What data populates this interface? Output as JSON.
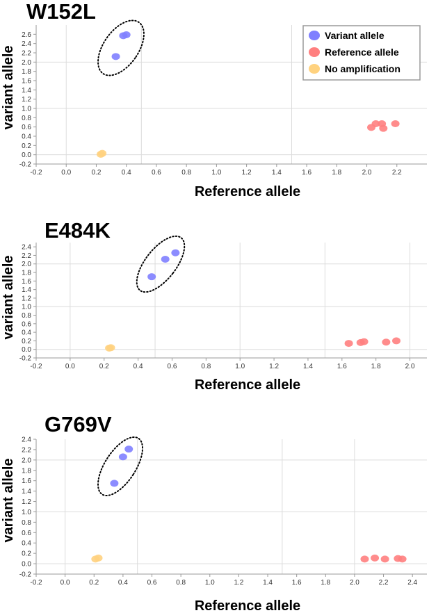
{
  "legend": {
    "items": [
      {
        "label": "Variant allele",
        "color": "#7f7fff"
      },
      {
        "label": "Reference allele",
        "color": "#ff7f7f"
      },
      {
        "label": "No amplification",
        "color": "#ffd27f"
      }
    ]
  },
  "chart_data": [
    {
      "type": "scatter",
      "title": "W152L",
      "xlabel": "Reference allele",
      "ylabel": "variant allele",
      "xlim": [
        -0.2,
        2.4
      ],
      "ylim": [
        -0.2,
        2.8
      ],
      "x_ticks": [
        -0.2,
        0.0,
        0.2,
        0.4,
        0.6,
        0.8,
        1.0,
        1.2,
        1.4,
        1.6,
        1.8,
        2.0,
        2.2
      ],
      "y_ticks": [
        -0.2,
        0.0,
        0.2,
        0.4,
        0.6,
        0.8,
        1.0,
        1.2,
        1.4,
        1.6,
        1.8,
        2.0,
        2.2,
        2.4,
        2.6
      ],
      "grid_x": [
        0.0,
        0.5,
        1.5
      ],
      "grid_y": [
        0.0,
        1.0,
        2.0
      ],
      "legend": "top-right",
      "series": [
        {
          "name": "Variant allele",
          "color": "#7f7fff",
          "points": [
            [
              0.33,
              2.12
            ],
            [
              0.38,
              2.57
            ],
            [
              0.4,
              2.59
            ]
          ]
        },
        {
          "name": "Reference allele",
          "color": "#ff7f7f",
          "points": [
            [
              2.03,
              0.59
            ],
            [
              2.06,
              0.67
            ],
            [
              2.1,
              0.67
            ],
            [
              2.11,
              0.57
            ],
            [
              2.19,
              0.67
            ]
          ]
        },
        {
          "name": "No amplification",
          "color": "#ffd27f",
          "points": [
            [
              0.23,
              0.01
            ],
            [
              0.24,
              0.03
            ]
          ]
        }
      ]
    },
    {
      "type": "scatter",
      "title": "E484K",
      "xlabel": "Reference allele",
      "ylabel": "variant allele",
      "xlim": [
        -0.2,
        2.1
      ],
      "ylim": [
        -0.2,
        2.5
      ],
      "x_ticks": [
        -0.2,
        0.0,
        0.2,
        0.4,
        0.6,
        0.8,
        1.0,
        1.2,
        1.4,
        1.6,
        1.8,
        2.0
      ],
      "y_ticks": [
        -0.2,
        0.0,
        0.2,
        0.4,
        0.6,
        0.8,
        1.0,
        1.2,
        1.4,
        1.6,
        1.8,
        2.0,
        2.2,
        2.4
      ],
      "grid_x": [
        0.0,
        0.5,
        1.0,
        1.5,
        2.0
      ],
      "grid_y": [
        0.0,
        1.0,
        2.0
      ],
      "series": [
        {
          "name": "Variant allele",
          "color": "#7f7fff",
          "points": [
            [
              0.48,
              1.7
            ],
            [
              0.56,
              2.11
            ],
            [
              0.62,
              2.26
            ]
          ]
        },
        {
          "name": "Reference allele",
          "color": "#ff7f7f",
          "points": [
            [
              1.64,
              0.14
            ],
            [
              1.71,
              0.16
            ],
            [
              1.73,
              0.18
            ],
            [
              1.86,
              0.17
            ],
            [
              1.92,
              0.2
            ]
          ]
        },
        {
          "name": "No amplification",
          "color": "#ffd27f",
          "points": [
            [
              0.23,
              0.03
            ],
            [
              0.24,
              0.04
            ]
          ]
        }
      ]
    },
    {
      "type": "scatter",
      "title": "G769V",
      "xlabel": "Reference allele",
      "ylabel": "variant allele",
      "xlim": [
        -0.2,
        2.5
      ],
      "ylim": [
        -0.2,
        2.4
      ],
      "x_ticks": [
        -0.2,
        0.0,
        0.2,
        0.4,
        0.6,
        0.8,
        1.0,
        1.2,
        1.4,
        1.6,
        1.8,
        2.0,
        2.2,
        2.4
      ],
      "y_ticks": [
        -0.2,
        0.0,
        0.2,
        0.4,
        0.6,
        0.8,
        1.0,
        1.2,
        1.4,
        1.6,
        1.8,
        2.0,
        2.2,
        2.4
      ],
      "grid_x": [
        0.0,
        0.5,
        1.5,
        2.0
      ],
      "grid_y": [
        0.0,
        1.0,
        2.0
      ],
      "series": [
        {
          "name": "Variant allele",
          "color": "#7f7fff",
          "points": [
            [
              0.34,
              1.55
            ],
            [
              0.4,
              2.06
            ],
            [
              0.44,
              2.21
            ]
          ]
        },
        {
          "name": "Reference allele",
          "color": "#ff7f7f",
          "points": [
            [
              2.07,
              0.09
            ],
            [
              2.14,
              0.11
            ],
            [
              2.21,
              0.09
            ],
            [
              2.3,
              0.1
            ],
            [
              2.33,
              0.09
            ]
          ]
        },
        {
          "name": "No amplification",
          "color": "#ffd27f",
          "points": [
            [
              0.21,
              0.09
            ],
            [
              0.23,
              0.11
            ]
          ]
        }
      ]
    }
  ]
}
